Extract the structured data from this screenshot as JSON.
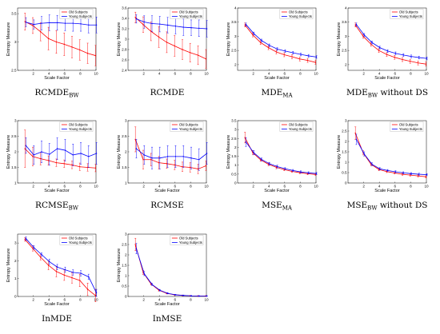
{
  "chart_data": [
    {
      "type": "line",
      "caption_main": "RCMDE",
      "caption_sub": "BW",
      "caption_tail": "",
      "xlabel": "Scale Factor",
      "ylabel": "Entropy Measure",
      "xlim": [
        0,
        10
      ],
      "ylim": [
        2.5,
        3.6
      ],
      "xticks": [
        2,
        4,
        6,
        8,
        10
      ],
      "yticks": [
        "2.5",
        "3",
        "3.5"
      ],
      "ytick_vals": [
        2.5,
        3,
        3.5
      ],
      "x": [
        1,
        2,
        3,
        4,
        5,
        6,
        7,
        8,
        9,
        10
      ],
      "series": [
        {
          "name": "Old Subjects",
          "color": "#ff0000",
          "values": [
            3.36,
            3.29,
            3.18,
            3.06,
            3.0,
            2.96,
            2.91,
            2.86,
            2.8,
            2.76
          ],
          "err": [
            0.15,
            0.14,
            0.16,
            0.2,
            0.2,
            0.2,
            0.19,
            0.18,
            0.18,
            0.18
          ]
        },
        {
          "name": "Young Subjects",
          "color": "#0000ff",
          "values": [
            3.35,
            3.31,
            3.33,
            3.34,
            3.34,
            3.33,
            3.33,
            3.32,
            3.3,
            3.3
          ],
          "err": [
            0.08,
            0.08,
            0.12,
            0.14,
            0.13,
            0.13,
            0.14,
            0.13,
            0.14,
            0.14
          ]
        }
      ]
    },
    {
      "type": "line",
      "caption_main": "RCMDE",
      "caption_sub": "",
      "caption_tail": "",
      "xlabel": "",
      "ylabel": "Entropy Measure",
      "xlim": [
        0,
        10
      ],
      "ylim": [
        2.4,
        3.6
      ],
      "xticks": [
        2,
        4,
        6,
        8,
        10
      ],
      "yticks": [
        "2.4",
        "2.6",
        "2.8",
        "3",
        "3.2",
        "3.4",
        "3.6"
      ],
      "ytick_vals": [
        2.4,
        2.6,
        2.8,
        3,
        3.2,
        3.4,
        3.6
      ],
      "x": [
        1,
        2,
        3,
        4,
        5,
        6,
        7,
        8,
        9,
        10
      ],
      "series": [
        {
          "name": "Old Subjects",
          "color": "#ff0000",
          "values": [
            3.42,
            3.28,
            3.15,
            3.04,
            2.94,
            2.87,
            2.8,
            2.74,
            2.69,
            2.62
          ],
          "err": [
            0.1,
            0.15,
            0.18,
            0.2,
            0.2,
            0.2,
            0.19,
            0.18,
            0.18,
            0.18
          ]
        },
        {
          "name": "Young Subjects",
          "color": "#0000ff",
          "values": [
            3.39,
            3.33,
            3.3,
            3.29,
            3.27,
            3.25,
            3.23,
            3.22,
            3.21,
            3.2
          ],
          "err": [
            0.08,
            0.12,
            0.15,
            0.15,
            0.15,
            0.15,
            0.16,
            0.15,
            0.16,
            0.16
          ]
        }
      ]
    },
    {
      "type": "line",
      "caption_main": "MDE",
      "caption_sub": "MA",
      "caption_tail": "",
      "xlabel": "Scale Factor",
      "ylabel": "Entropy Measure",
      "xlim": [
        0,
        10
      ],
      "ylim": [
        1.8,
        4
      ],
      "xticks": [
        2,
        4,
        6,
        8,
        10
      ],
      "yticks": [
        "2",
        "2.5",
        "3",
        "3.5",
        "4"
      ],
      "ytick_vals": [
        2,
        2.5,
        3,
        3.5,
        4
      ],
      "x": [
        1,
        2,
        3,
        4,
        5,
        6,
        7,
        8,
        9,
        10
      ],
      "series": [
        {
          "name": "Old Subjects",
          "color": "#ff0000",
          "values": [
            3.4,
            3.05,
            2.78,
            2.6,
            2.45,
            2.35,
            2.28,
            2.2,
            2.15,
            2.08
          ],
          "err": [
            0.07,
            0.07,
            0.07,
            0.07,
            0.07,
            0.07,
            0.07,
            0.07,
            0.07,
            0.07
          ]
        },
        {
          "name": "Young Subjects",
          "color": "#0000ff",
          "values": [
            3.42,
            3.1,
            2.85,
            2.68,
            2.55,
            2.48,
            2.42,
            2.36,
            2.31,
            2.27
          ],
          "err": [
            0.05,
            0.05,
            0.05,
            0.05,
            0.05,
            0.05,
            0.05,
            0.05,
            0.05,
            0.05
          ]
        }
      ]
    },
    {
      "type": "line",
      "caption_main": "MDE",
      "caption_sub": "BW",
      "caption_tail": " without DS",
      "xlabel": "Scale Factor",
      "ylabel": "Entropy Measure",
      "xlim": [
        0,
        10
      ],
      "ylim": [
        1.8,
        4
      ],
      "xticks": [
        2,
        4,
        6,
        8,
        10
      ],
      "yticks": [
        "2",
        "2.5",
        "3",
        "3.5",
        "4"
      ],
      "ytick_vals": [
        2,
        2.5,
        3,
        3.5,
        4
      ],
      "x": [
        1,
        2,
        3,
        4,
        5,
        6,
        7,
        8,
        9,
        10
      ],
      "series": [
        {
          "name": "Old Subjects",
          "color": "#ff0000",
          "values": [
            3.4,
            3.0,
            2.72,
            2.5,
            2.36,
            2.26,
            2.18,
            2.12,
            2.06,
            2.02
          ],
          "err": [
            0.07,
            0.07,
            0.07,
            0.07,
            0.07,
            0.07,
            0.07,
            0.07,
            0.07,
            0.07
          ]
        },
        {
          "name": "Young Subjects",
          "color": "#0000ff",
          "values": [
            3.42,
            3.05,
            2.78,
            2.6,
            2.48,
            2.4,
            2.34,
            2.29,
            2.25,
            2.22
          ],
          "err": [
            0.05,
            0.05,
            0.05,
            0.05,
            0.05,
            0.05,
            0.05,
            0.05,
            0.05,
            0.05
          ]
        }
      ]
    },
    {
      "type": "line",
      "caption_main": "RCMSE",
      "caption_sub": "BW",
      "caption_tail": "",
      "xlabel": "Scale Factor",
      "ylabel": "Entropy Measure",
      "xlim": [
        0,
        10
      ],
      "ylim": [
        1,
        3
      ],
      "xticks": [
        2,
        4,
        6,
        8,
        10
      ],
      "yticks": [
        "1",
        "1.5",
        "2",
        "2.5",
        "3"
      ],
      "ytick_vals": [
        1,
        1.5,
        2,
        2.5,
        3
      ],
      "x": [
        1,
        2,
        3,
        4,
        5,
        6,
        7,
        8,
        9,
        10
      ],
      "series": [
        {
          "name": "Old Subjects",
          "color": "#ff0000",
          "values": [
            2.1,
            1.85,
            1.78,
            1.72,
            1.65,
            1.62,
            1.58,
            1.52,
            1.5,
            1.48
          ],
          "err": [
            0.6,
            0.3,
            0.2,
            0.15,
            0.12,
            0.12,
            0.12,
            0.12,
            0.12,
            0.12
          ]
        },
        {
          "name": "Young Subjects",
          "color": "#0000ff",
          "values": [
            2.2,
            1.9,
            2.0,
            1.92,
            2.1,
            2.05,
            1.9,
            1.95,
            1.85,
            1.95
          ],
          "err": [
            0.25,
            0.3,
            0.35,
            0.35,
            0.35,
            0.35,
            0.35,
            0.35,
            0.35,
            0.35
          ]
        }
      ]
    },
    {
      "type": "line",
      "caption_main": "RCMSE",
      "caption_sub": "",
      "caption_tail": "",
      "xlabel": "Scale Factor",
      "ylabel": "Entropy Measure",
      "xlim": [
        0,
        10
      ],
      "ylim": [
        1,
        3
      ],
      "xticks": [
        2,
        4,
        6,
        8,
        10
      ],
      "yticks": [
        "1",
        "1.5",
        "2",
        "2.5",
        "3"
      ],
      "ytick_vals": [
        1,
        1.5,
        2,
        2.5,
        3
      ],
      "x": [
        1,
        2,
        3,
        4,
        5,
        6,
        7,
        8,
        9,
        10
      ],
      "series": [
        {
          "name": "Old Subjects",
          "color": "#ff0000",
          "values": [
            2.4,
            1.75,
            1.75,
            1.65,
            1.62,
            1.58,
            1.52,
            1.5,
            1.45,
            1.55
          ],
          "err": [
            0.4,
            0.3,
            0.2,
            0.2,
            0.15,
            0.15,
            0.15,
            0.15,
            0.15,
            0.15
          ]
        },
        {
          "name": "Young Subjects",
          "color": "#0000ff",
          "values": [
            2.1,
            1.9,
            1.8,
            1.8,
            1.85,
            1.85,
            1.85,
            1.8,
            1.75,
            1.95
          ],
          "err": [
            0.3,
            0.3,
            0.35,
            0.35,
            0.35,
            0.35,
            0.35,
            0.35,
            0.35,
            0.35
          ]
        }
      ]
    },
    {
      "type": "line",
      "caption_main": "MSE",
      "caption_sub": "MA",
      "caption_tail": "",
      "xlabel": "Scale Factor",
      "ylabel": "Entropy Measure",
      "xlim": [
        0,
        10
      ],
      "ylim": [
        0,
        3.5
      ],
      "xticks": [
        2,
        4,
        6,
        8,
        10
      ],
      "yticks": [
        "0",
        "0.5",
        "1",
        "1.5",
        "2",
        "2.5",
        "3",
        "3.5"
      ],
      "ytick_vals": [
        0,
        0.5,
        1,
        1.5,
        2,
        2.5,
        3,
        3.5
      ],
      "x": [
        1,
        2,
        3,
        4,
        5,
        6,
        7,
        8,
        9,
        10
      ],
      "series": [
        {
          "name": "Old Subjects",
          "color": "#ff0000",
          "values": [
            2.55,
            1.7,
            1.3,
            1.05,
            0.88,
            0.75,
            0.65,
            0.58,
            0.52,
            0.48
          ],
          "err": [
            0.3,
            0.12,
            0.08,
            0.08,
            0.08,
            0.06,
            0.06,
            0.06,
            0.06,
            0.06
          ]
        },
        {
          "name": "Young Subjects",
          "color": "#0000ff",
          "values": [
            2.3,
            1.7,
            1.32,
            1.08,
            0.92,
            0.8,
            0.7,
            0.62,
            0.57,
            0.53
          ],
          "err": [
            0.25,
            0.12,
            0.08,
            0.08,
            0.08,
            0.06,
            0.06,
            0.06,
            0.06,
            0.06
          ]
        }
      ]
    },
    {
      "type": "line",
      "caption_main": "MSE",
      "caption_sub": "BW",
      "caption_tail": " without DS",
      "xlabel": "Scale Factor",
      "ylabel": "Entropy Measure",
      "xlim": [
        0,
        10
      ],
      "ylim": [
        0,
        3
      ],
      "xticks": [
        2,
        4,
        6,
        8,
        10
      ],
      "yticks": [
        "0",
        "0.5",
        "1",
        "1.5",
        "2",
        "2.5",
        "3"
      ],
      "ytick_vals": [
        0,
        0.5,
        1,
        1.5,
        2,
        2.5,
        3
      ],
      "x": [
        1,
        2,
        3,
        4,
        5,
        6,
        7,
        8,
        9,
        10
      ],
      "series": [
        {
          "name": "Old Subjects",
          "color": "#ff0000",
          "values": [
            2.4,
            1.45,
            0.9,
            0.65,
            0.55,
            0.48,
            0.42,
            0.38,
            0.34,
            0.3
          ],
          "err": [
            0.3,
            0.1,
            0.07,
            0.06,
            0.05,
            0.05,
            0.05,
            0.05,
            0.05,
            0.05
          ]
        },
        {
          "name": "Young Subjects",
          "color": "#0000ff",
          "values": [
            2.1,
            1.4,
            0.9,
            0.68,
            0.6,
            0.54,
            0.49,
            0.45,
            0.42,
            0.4
          ],
          "err": [
            0.25,
            0.1,
            0.07,
            0.06,
            0.05,
            0.05,
            0.05,
            0.05,
            0.05,
            0.05
          ]
        }
      ]
    },
    {
      "type": "line",
      "caption_main": "InMDE",
      "caption_sub": "",
      "caption_tail": "",
      "xlabel": "Scale Factor",
      "ylabel": "Entropy Measure",
      "xlim": [
        0,
        10
      ],
      "ylim": [
        0,
        3.5
      ],
      "xticks": [
        2,
        4,
        6,
        8,
        10
      ],
      "yticks": [
        "0",
        "1",
        "2",
        "3"
      ],
      "ytick_vals": [
        0,
        1,
        2,
        3
      ],
      "x": [
        1,
        2,
        3,
        4,
        5,
        6,
        7,
        8,
        9,
        10
      ],
      "series": [
        {
          "name": "Old Subjects",
          "color": "#ff0000",
          "values": [
            3.2,
            2.7,
            2.2,
            1.75,
            1.4,
            1.2,
            1.05,
            0.9,
            0.4,
            0.05
          ],
          "err": [
            0.1,
            0.15,
            0.15,
            0.25,
            0.3,
            0.3,
            0.3,
            0.35,
            0.35,
            0.35
          ]
        },
        {
          "name": "Young Subjects",
          "color": "#0000ff",
          "values": [
            3.25,
            2.75,
            2.35,
            1.95,
            1.65,
            1.5,
            1.35,
            1.3,
            1.1,
            0.2
          ],
          "err": [
            0.1,
            0.1,
            0.1,
            0.15,
            0.15,
            0.15,
            0.15,
            0.15,
            0.15,
            0.2
          ]
        }
      ]
    },
    {
      "type": "line",
      "caption_main": "InMSE",
      "caption_sub": "",
      "caption_tail": "",
      "xlabel": "Scale Factor",
      "ylabel": "Entropy Measure",
      "xlim": [
        0,
        10
      ],
      "ylim": [
        0,
        3
      ],
      "xticks": [
        2,
        4,
        6,
        8,
        10
      ],
      "yticks": [
        "0",
        "0.5",
        "1",
        "1.5",
        "2",
        "2.5",
        "3"
      ],
      "ytick_vals": [
        0,
        0.5,
        1,
        1.5,
        2,
        2.5,
        3
      ],
      "x": [
        1,
        2,
        3,
        4,
        5,
        6,
        7,
        8,
        9,
        10
      ],
      "series": [
        {
          "name": "Old Subjects",
          "color": "#ff0000",
          "values": [
            2.5,
            1.15,
            0.6,
            0.3,
            0.15,
            0.08,
            0.05,
            0.03,
            0.02,
            0.02
          ],
          "err": [
            0.3,
            0.1,
            0.05,
            0.04,
            0.03,
            0.02,
            0.02,
            0.02,
            0.02,
            0.02
          ]
        },
        {
          "name": "Young Subjects",
          "color": "#0000ff",
          "values": [
            2.3,
            1.1,
            0.58,
            0.3,
            0.15,
            0.08,
            0.05,
            0.03,
            0.02,
            0.02
          ],
          "err": [
            0.25,
            0.1,
            0.05,
            0.04,
            0.03,
            0.02,
            0.02,
            0.02,
            0.02,
            0.02
          ]
        }
      ]
    }
  ]
}
